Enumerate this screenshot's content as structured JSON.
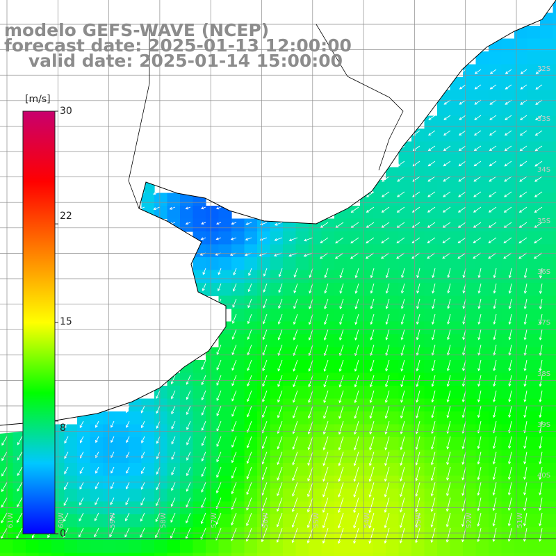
{
  "titles": {
    "line1": "modelo GEFS-WAVE (NCEP)",
    "line2": "forecast date: 2025-01-13 12:00:00",
    "line3": "    valid date: 2025-01-14 15:00:00"
  },
  "colorbar": {
    "unit": "[m/s]",
    "min": 0,
    "max": 30,
    "ticks": [
      {
        "value": 30,
        "label": "30"
      },
      {
        "value": 22,
        "label": "22"
      },
      {
        "value": 15,
        "label": "15"
      },
      {
        "value": 8,
        "label": "8"
      },
      {
        "value": 0,
        "label": "0"
      }
    ]
  },
  "grid": {
    "lat_labels": [
      "32S",
      "33S",
      "34S",
      "35S",
      "36S",
      "37S",
      "38S",
      "39S",
      "40S"
    ],
    "lon_labels": [
      "61W",
      "60W",
      "59W",
      "58W",
      "57W",
      "56W",
      "55W",
      "54W",
      "53W",
      "52W",
      "51W"
    ]
  },
  "colors": {
    "land": "#ffffff",
    "coastline": "#000000",
    "gridlines": "#8c8c8c",
    "arrows": "#ffffff",
    "colorbar_stops": [
      "#0000ff",
      "#00c8ff",
      "#00ff00",
      "#ffff00",
      "#ff8000",
      "#ff0000",
      "#c8006e"
    ]
  }
}
